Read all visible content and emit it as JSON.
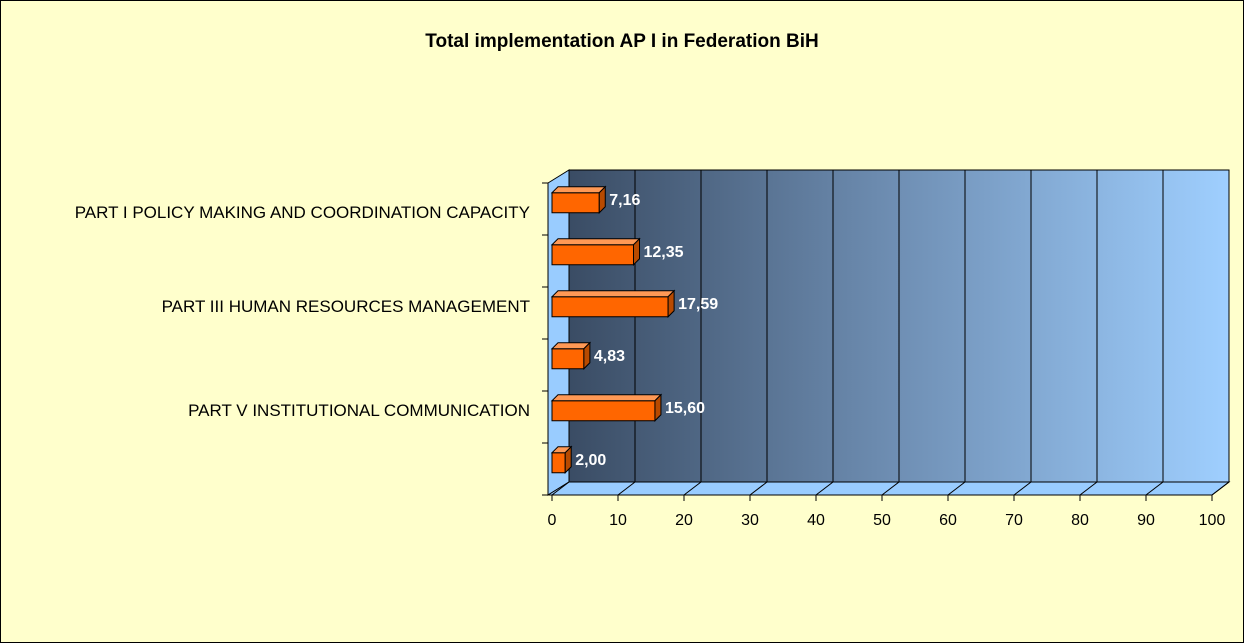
{
  "chart_data": {
    "type": "bar3d_horizontal",
    "title": "Total implementation AP I in Federation BiH",
    "categories": [
      "PART I POLICY MAKING AND COORDINATION CAPACITY",
      null,
      "PART III HUMAN RESOURCES MANAGEMENT",
      null,
      "PART V INSTITUTIONAL COMMUNICATION",
      null
    ],
    "values": [
      7.16,
      12.35,
      17.59,
      4.83,
      15.6,
      2.0
    ],
    "value_labels": [
      "7,16",
      "12,35",
      "17,59",
      "4,83",
      "15,60",
      "2,00"
    ],
    "color": "#ff6600",
    "xlim": [
      0,
      100
    ],
    "xticks": [
      0,
      10,
      20,
      30,
      40,
      50,
      60,
      70,
      80,
      90,
      100
    ],
    "grid": true
  }
}
